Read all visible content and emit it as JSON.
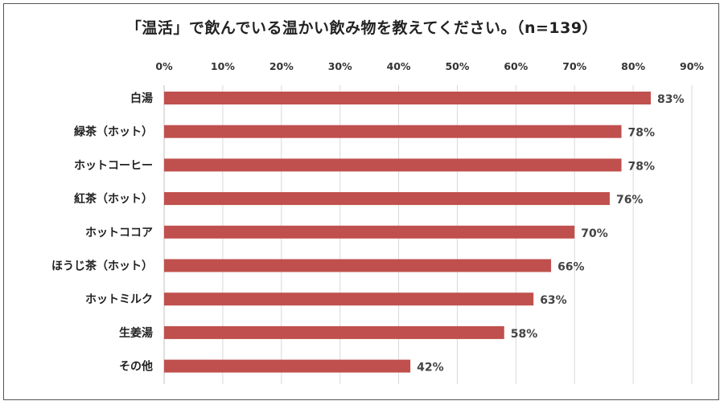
{
  "chart_data": {
    "type": "bar",
    "orientation": "horizontal",
    "title": "「温活」で飲んでいる温かい飲み物を教えてください。（n=139）",
    "categories": [
      "白湯",
      "緑茶（ホット）",
      "ホットコーヒー",
      "紅茶（ホット）",
      "ホットココア",
      "ほうじ茶（ホット）",
      "ホットミルク",
      "生姜湯",
      "その他"
    ],
    "values": [
      83,
      78,
      78,
      76,
      70,
      66,
      63,
      58,
      42
    ],
    "data_labels": [
      "83%",
      "78%",
      "78%",
      "76%",
      "70%",
      "66%",
      "63%",
      "58%",
      "42%"
    ],
    "xlim": [
      0,
      90
    ],
    "x_ticks": [
      "0%",
      "10%",
      "20%",
      "30%",
      "40%",
      "50%",
      "60%",
      "70%",
      "80%",
      "90%"
    ],
    "x_axis_position": "top",
    "grid": true,
    "bar_color": "#C0504D"
  }
}
